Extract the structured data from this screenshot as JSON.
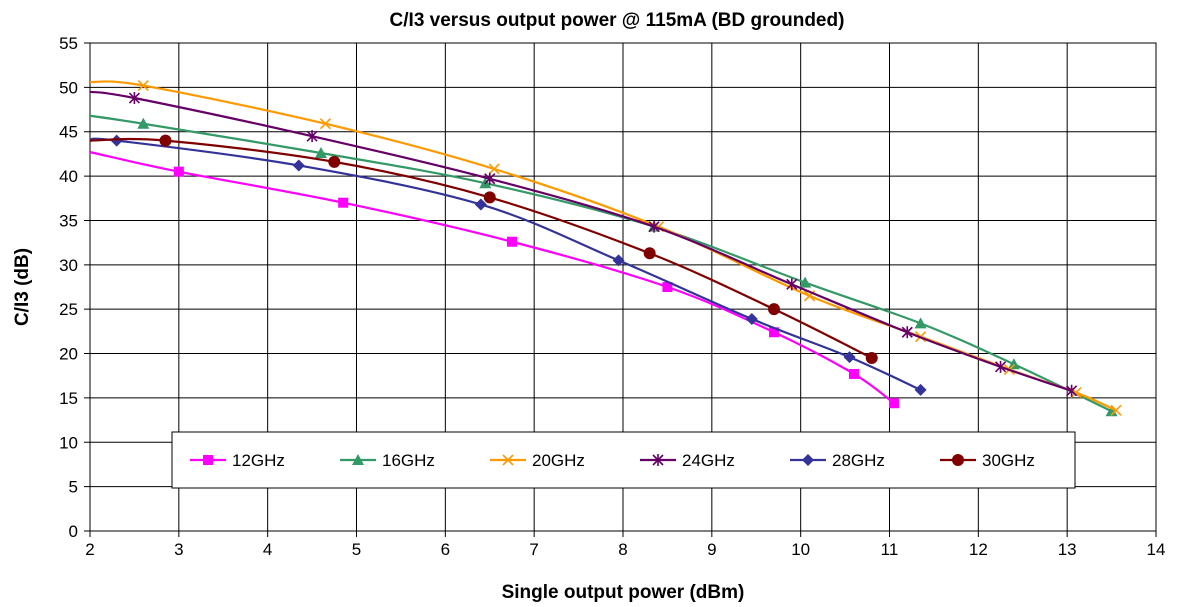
{
  "chart_data": {
    "type": "line",
    "title": "C/I3 versus output power @ 115mA (BD grounded)",
    "xlabel": "Single output power (dBm)",
    "ylabel": "C/I3 (dB)",
    "xlim": [
      2,
      14
    ],
    "ylim": [
      0,
      55
    ],
    "xticks": [
      2,
      3,
      4,
      5,
      6,
      7,
      8,
      9,
      10,
      11,
      12,
      13,
      14
    ],
    "yticks": [
      0,
      5,
      10,
      15,
      20,
      25,
      30,
      35,
      40,
      45,
      50,
      55
    ],
    "grid": true,
    "legend_position": "bottom-center, inside plot",
    "series": [
      {
        "name": "12GHz",
        "color": "#FF00FF",
        "marker": "square",
        "points": [
          [
            2.0,
            42.7
          ],
          [
            3.0,
            40.5
          ],
          [
            4.85,
            37.0
          ],
          [
            6.75,
            32.6
          ],
          [
            8.5,
            27.5
          ],
          [
            9.7,
            22.4
          ],
          [
            10.6,
            17.7
          ],
          [
            11.05,
            14.4
          ]
        ]
      },
      {
        "name": "16GHz",
        "color": "#339966",
        "marker": "triangle",
        "points": [
          [
            2.0,
            46.8
          ],
          [
            2.6,
            45.9
          ],
          [
            4.6,
            42.6
          ],
          [
            6.45,
            39.2
          ],
          [
            8.35,
            34.3
          ],
          [
            10.05,
            28.0
          ],
          [
            11.35,
            23.4
          ],
          [
            12.4,
            18.8
          ],
          [
            13.5,
            13.5
          ]
        ]
      },
      {
        "name": "20GHz",
        "color": "#FF9900",
        "marker": "x",
        "points": [
          [
            2.0,
            50.6
          ],
          [
            2.6,
            50.2
          ],
          [
            4.65,
            45.9
          ],
          [
            6.55,
            40.8
          ],
          [
            8.4,
            34.3
          ],
          [
            10.1,
            26.5
          ],
          [
            11.35,
            21.9
          ],
          [
            12.35,
            18.2
          ],
          [
            13.1,
            15.6
          ],
          [
            13.55,
            13.6
          ]
        ]
      },
      {
        "name": "24GHz",
        "color": "#660066",
        "marker": "star",
        "points": [
          [
            2.0,
            49.5
          ],
          [
            2.5,
            48.8
          ],
          [
            4.5,
            44.5
          ],
          [
            6.5,
            39.7
          ],
          [
            8.35,
            34.3
          ],
          [
            9.9,
            27.8
          ],
          [
            11.2,
            22.4
          ],
          [
            12.25,
            18.5
          ],
          [
            13.05,
            15.8
          ]
        ]
      },
      {
        "name": "28GHz",
        "color": "#333399",
        "marker": "diamond",
        "points": [
          [
            2.0,
            44.0
          ],
          [
            2.3,
            44.0
          ],
          [
            4.35,
            41.2
          ],
          [
            6.4,
            36.8
          ],
          [
            7.95,
            30.5
          ],
          [
            9.45,
            23.9
          ],
          [
            10.55,
            19.6
          ],
          [
            11.35,
            15.9
          ]
        ]
      },
      {
        "name": "30GHz",
        "color": "#800000",
        "marker": "circle",
        "points": [
          [
            2.0,
            44.0
          ],
          [
            2.85,
            44.0
          ],
          [
            4.75,
            41.6
          ],
          [
            6.5,
            37.6
          ],
          [
            8.3,
            31.3
          ],
          [
            9.7,
            25.0
          ],
          [
            10.8,
            19.5
          ]
        ]
      }
    ]
  }
}
